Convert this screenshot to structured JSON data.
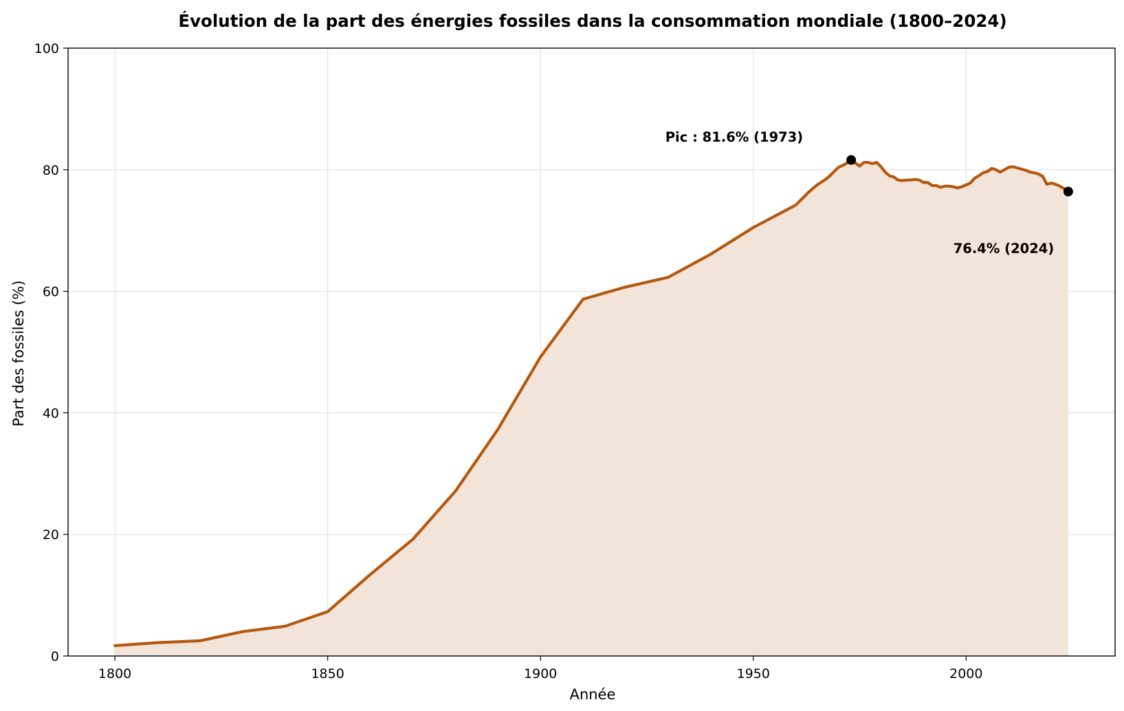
{
  "chart_data": {
    "type": "area",
    "title": "Évolution de la part des énergies fossiles dans la consommation mondiale (1800–2024)",
    "xlabel": "Année",
    "ylabel": "Part des fossiles (%)",
    "xlim": [
      1789,
      2035
    ],
    "ylim": [
      0,
      100
    ],
    "xticks": [
      1800,
      1850,
      1900,
      1950,
      2000
    ],
    "yticks": [
      0,
      20,
      40,
      60,
      80,
      100
    ],
    "grid": true,
    "line_color": "#b5580e",
    "fill_color": "#f2e4d8",
    "series": [
      {
        "x": [
          1800,
          1810,
          1820,
          1830,
          1840,
          1850,
          1860,
          1870,
          1880,
          1890,
          1900,
          1910,
          1920,
          1930,
          1940,
          1950,
          1960,
          1963,
          1965,
          1967,
          1968,
          1970,
          1971,
          1972,
          1973,
          1974,
          1975,
          1976,
          1977,
          1978,
          1979,
          1980,
          1981,
          1982,
          1983,
          1984,
          1985,
          1986,
          1987,
          1988,
          1989,
          1990,
          1991,
          1992,
          1993,
          1994,
          1995,
          1996,
          1997,
          1998,
          1999,
          2000,
          2001,
          2002,
          2003,
          2004,
          2005,
          2006,
          2007,
          2008,
          2009,
          2010,
          2011,
          2012,
          2013,
          2014,
          2015,
          2016,
          2017,
          2018,
          2019,
          2020,
          2021,
          2022,
          2023,
          2024
        ],
        "y": [
          1.7,
          2.2,
          2.5,
          4.0,
          4.9,
          7.3,
          13.4,
          19.2,
          27.1,
          37.3,
          49.2,
          58.7,
          60.7,
          62.3,
          66.1,
          70.5,
          74.2,
          76.3,
          77.5,
          78.4,
          79.0,
          80.4,
          80.7,
          81.1,
          81.6,
          81.1,
          80.6,
          81.2,
          81.2,
          81.0,
          81.2,
          80.5,
          79.6,
          79.0,
          78.8,
          78.3,
          78.2,
          78.3,
          78.3,
          78.4,
          78.3,
          77.9,
          77.9,
          77.4,
          77.4,
          77.1,
          77.3,
          77.3,
          77.2,
          77.0,
          77.2,
          77.5,
          77.8,
          78.6,
          79.0,
          79.5,
          79.7,
          80.2,
          80.0,
          79.6,
          80.0,
          80.4,
          80.5,
          80.3,
          80.1,
          79.9,
          79.6,
          79.5,
          79.3,
          78.9,
          77.6,
          77.8,
          77.6,
          77.3,
          76.9,
          76.4
        ]
      }
    ],
    "points": [
      {
        "x": 1973,
        "y": 81.6,
        "label": "Pic : 81.6% (1973)"
      },
      {
        "x": 2024,
        "y": 76.4,
        "label": "76.4% (2024)"
      }
    ]
  }
}
